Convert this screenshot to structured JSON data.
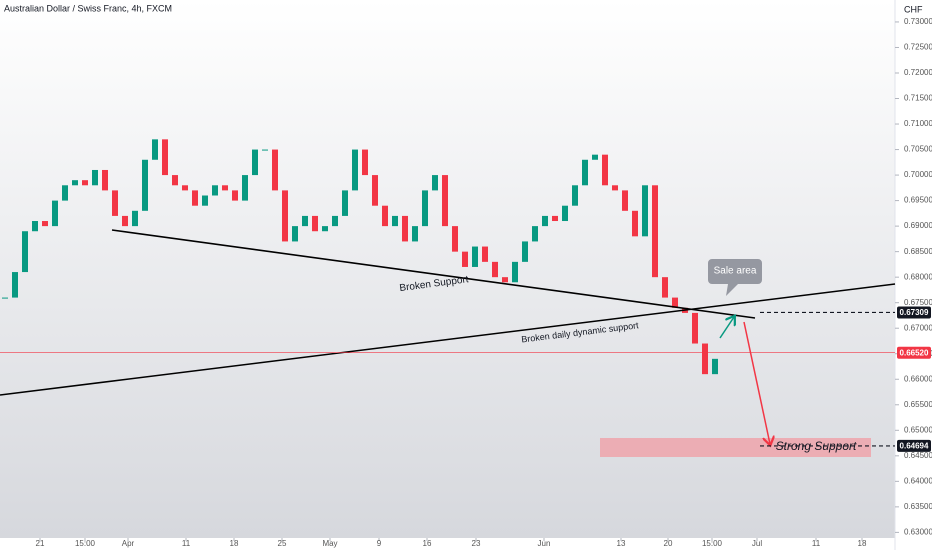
{
  "chart_data": {
    "type": "candlestick",
    "title": "Australian Dollar / Swiss Franc, 4h, FXCM",
    "currency": "CHF",
    "series": [
      {
        "name": "AUDCHF",
        "up_color": "#089981",
        "down_color": "#f23645",
        "values": [
          0.676,
          0.681,
          0.689,
          0.691,
          0.69,
          0.695,
          0.698,
          0.699,
          0.698,
          0.701,
          0.697,
          0.692,
          0.69,
          0.693,
          0.703,
          0.707,
          0.7,
          0.698,
          0.697,
          0.694,
          0.696,
          0.698,
          0.697,
          0.695,
          0.7,
          0.705,
          0.705,
          0.697,
          0.687,
          0.69,
          0.692,
          0.689,
          0.69,
          0.692,
          0.697,
          0.705,
          0.7,
          0.694,
          0.69,
          0.692,
          0.687,
          0.69,
          0.697,
          0.7,
          0.69,
          0.685,
          0.682,
          0.686,
          0.683,
          0.68,
          0.679,
          0.683,
          0.687,
          0.69,
          0.692,
          0.691,
          0.694,
          0.698,
          0.703,
          0.704,
          0.698,
          0.697,
          0.693,
          0.688,
          0.698,
          0.68,
          0.676,
          0.674,
          0.673,
          0.667,
          0.661,
          0.664
        ]
      }
    ],
    "ylim": [
      0.6289,
      0.7343
    ],
    "yticks": [
      {
        "value": 0.63,
        "label": "0.63000"
      },
      {
        "value": 0.635,
        "label": "0.63500"
      },
      {
        "value": 0.64,
        "label": "0.64000"
      },
      {
        "value": 0.645,
        "label": "0.64500"
      },
      {
        "value": 0.65,
        "label": "0.65000"
      },
      {
        "value": 0.655,
        "label": "0.65500"
      },
      {
        "value": 0.66,
        "label": "0.66000"
      },
      {
        "value": 0.665,
        "label": "0.66500"
      },
      {
        "value": 0.67,
        "label": "0.67000"
      },
      {
        "value": 0.675,
        "label": "0.67500"
      },
      {
        "value": 0.68,
        "label": "0.68000"
      },
      {
        "value": 0.685,
        "label": "0.68500"
      },
      {
        "value": 0.69,
        "label": "0.69000"
      },
      {
        "value": 0.695,
        "label": "0.69500"
      },
      {
        "value": 0.7,
        "label": "0.70000"
      },
      {
        "value": 0.705,
        "label": "0.70500"
      },
      {
        "value": 0.71,
        "label": "0.71000"
      },
      {
        "value": 0.715,
        "label": "0.71500"
      },
      {
        "value": 0.72,
        "label": "0.72000"
      },
      {
        "value": 0.725,
        "label": "0.72500"
      },
      {
        "value": 0.73,
        "label": "0.73000"
      }
    ],
    "xlim": [
      0,
      89.5
    ],
    "xticks": [
      {
        "value": 4,
        "label": "21"
      },
      {
        "value": 8.5,
        "label": "15:00"
      },
      {
        "value": 12.8,
        "label": "Apr"
      },
      {
        "value": 18.6,
        "label": "11"
      },
      {
        "value": 23.4,
        "label": "18"
      },
      {
        "value": 28.2,
        "label": "25"
      },
      {
        "value": 33,
        "label": "May"
      },
      {
        "value": 37.9,
        "label": "9"
      },
      {
        "value": 42.7,
        "label": "16"
      },
      {
        "value": 47.6,
        "label": "23"
      },
      {
        "value": 54.4,
        "label": "Jun"
      },
      {
        "value": 62.1,
        "label": "13"
      },
      {
        "value": 66.8,
        "label": "20"
      },
      {
        "value": 71.2,
        "label": "15:00"
      },
      {
        "value": 75.7,
        "label": "Jul"
      },
      {
        "value": 81.6,
        "label": "11"
      },
      {
        "value": 86.2,
        "label": "18"
      }
    ],
    "price_lines": [
      {
        "value": 0.67309,
        "label": "0.67309",
        "color": "#131722"
      },
      {
        "value": 0.6652,
        "label": "0.66520",
        "color": "#f23645"
      },
      {
        "value": 0.64694,
        "label": "0.64694",
        "color": "#131722"
      }
    ],
    "annotations": {
      "broken_support": "Broken Support",
      "dynamic_support": "Broken daily dynamic support",
      "sale_area": "Sale area",
      "strong_support": "Strong Support"
    }
  }
}
